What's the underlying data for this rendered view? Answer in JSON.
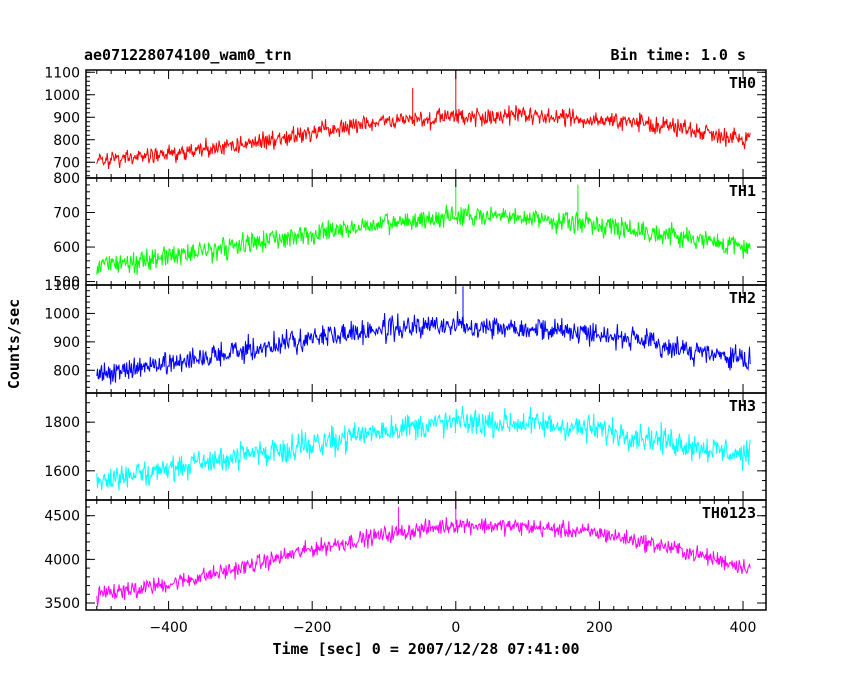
{
  "header": {
    "file_title": "ae071228074100_wam0_trn",
    "bin_time": "Bin time: 1.0 s"
  },
  "axes": {
    "xlabel": "Time [sec] 0 = 2007/12/28 07:41:00",
    "ylabel": "Counts/sec"
  },
  "chart_data": [
    {
      "type": "line",
      "series": [
        {
          "name": "TH0",
          "color": "#ff0000"
        }
      ],
      "label": "TH0",
      "xlim": [
        -515,
        432
      ],
      "ylim": [
        630,
        1110
      ],
      "x_ticks": [
        -400,
        -200,
        0,
        200,
        400
      ],
      "y_ticks": [
        700,
        800,
        900,
        1000,
        1100
      ],
      "trend": {
        "x": [
          -500,
          -400,
          -300,
          -200,
          -100,
          0,
          100,
          200,
          300,
          400
        ],
        "y": [
          705,
          735,
          780,
          830,
          880,
          905,
          905,
          890,
          860,
          805
        ]
      },
      "noise_amp": 40,
      "spikes": [
        {
          "x": 0,
          "y": 1110
        },
        {
          "x": -60,
          "y": 1030
        }
      ]
    },
    {
      "type": "line",
      "series": [
        {
          "name": "TH1",
          "color": "#00ff00"
        }
      ],
      "label": "TH1",
      "xlim": [
        -515,
        432
      ],
      "ylim": [
        490,
        800
      ],
      "x_ticks": [
        -400,
        -200,
        0,
        200,
        400
      ],
      "y_ticks": [
        500,
        600,
        700,
        800
      ],
      "y_tick_labels": [
        "500",
        "600",
        "700",
        "800"
      ],
      "trend": {
        "x": [
          -500,
          -400,
          -300,
          -200,
          -100,
          0,
          100,
          200,
          300,
          400
        ],
        "y": [
          545,
          575,
          605,
          640,
          665,
          690,
          685,
          665,
          635,
          600
        ]
      },
      "noise_amp": 30,
      "spikes": [
        {
          "x": 0,
          "y": 795
        },
        {
          "x": 170,
          "y": 780
        }
      ]
    },
    {
      "type": "line",
      "series": [
        {
          "name": "TH2",
          "color": "#0000ff"
        }
      ],
      "label": "TH2",
      "xlim": [
        -515,
        432
      ],
      "ylim": [
        720,
        1100
      ],
      "x_ticks": [
        -400,
        -200,
        0,
        200,
        400
      ],
      "y_ticks": [
        800,
        900,
        1000,
        1100
      ],
      "trend": {
        "x": [
          -500,
          -400,
          -300,
          -200,
          -100,
          0,
          100,
          200,
          300,
          400
        ],
        "y": [
          785,
          825,
          865,
          915,
          945,
          960,
          950,
          930,
          880,
          835
        ]
      },
      "noise_amp": 40,
      "spikes": [
        {
          "x": 10,
          "y": 1095
        }
      ]
    },
    {
      "type": "line",
      "series": [
        {
          "name": "TH3",
          "color": "#00ffff"
        }
      ],
      "label": "TH3",
      "xlim": [
        -515,
        432
      ],
      "ylim": [
        1480,
        1920
      ],
      "x_ticks": [
        -400,
        -200,
        0,
        200,
        400
      ],
      "y_ticks": [
        1600,
        1800
      ],
      "trend": {
        "x": [
          -500,
          -400,
          -300,
          -200,
          -100,
          0,
          100,
          200,
          300,
          400
        ],
        "y": [
          1560,
          1610,
          1660,
          1710,
          1770,
          1800,
          1795,
          1770,
          1720,
          1665
        ]
      },
      "noise_amp": 55,
      "spikes": []
    },
    {
      "type": "line",
      "series": [
        {
          "name": "TH0123",
          "color": "#ff00ff"
        }
      ],
      "label": "TH0123",
      "xlim": [
        -515,
        432
      ],
      "ylim": [
        3420,
        4680
      ],
      "x_ticks": [
        -400,
        -200,
        0,
        200,
        400
      ],
      "y_ticks": [
        3500,
        4000,
        4500
      ],
      "trend": {
        "x": [
          -500,
          -400,
          -300,
          -200,
          -100,
          0,
          100,
          200,
          300,
          400
        ],
        "y": [
          3590,
          3720,
          3900,
          4120,
          4280,
          4400,
          4370,
          4300,
          4130,
          3920
        ]
      },
      "noise_amp": 95,
      "spikes": [
        {
          "x": 0,
          "y": 4680
        },
        {
          "x": -80,
          "y": 4600
        }
      ]
    }
  ]
}
